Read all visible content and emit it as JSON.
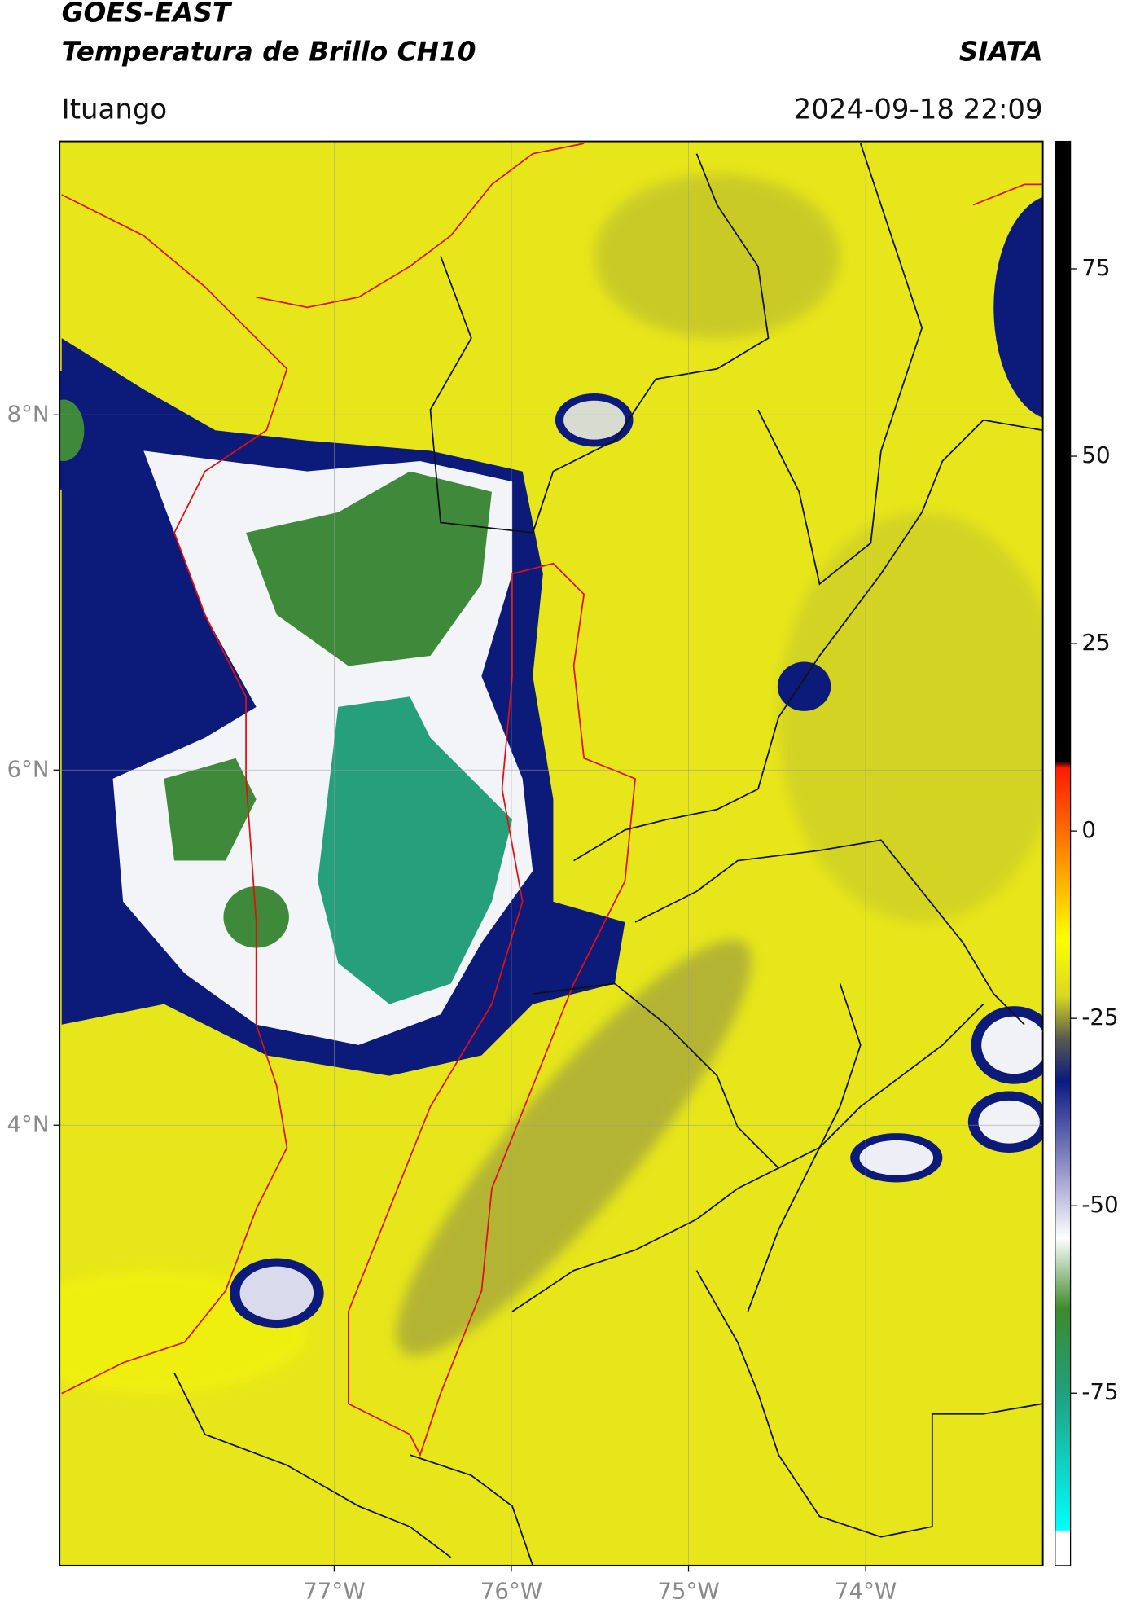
{
  "header": {
    "satellite": "GOES-EAST",
    "product": "Temperatura de Brillo CH10",
    "institution": "SIATA",
    "location": "Ituango",
    "datetime": "2024-09-18 22:09"
  },
  "map": {
    "xlim": [
      -78.55,
      -73.0
    ],
    "ylim": [
      1.52,
      9.54
    ],
    "xticks": [
      {
        "value": -77,
        "label": "77°W"
      },
      {
        "value": -76,
        "label": "76°W"
      },
      {
        "value": -75,
        "label": "75°W"
      },
      {
        "value": -74,
        "label": "74°W"
      }
    ],
    "yticks": [
      {
        "value": 8,
        "label": "8°N"
      },
      {
        "value": 6,
        "label": "6°N"
      },
      {
        "value": 4,
        "label": "4°N"
      }
    ],
    "grid": true
  },
  "colorbar": {
    "lim": [
      -98,
      92
    ],
    "ticks": [
      75,
      50,
      25,
      0,
      -25,
      -50,
      -75
    ]
  }
}
